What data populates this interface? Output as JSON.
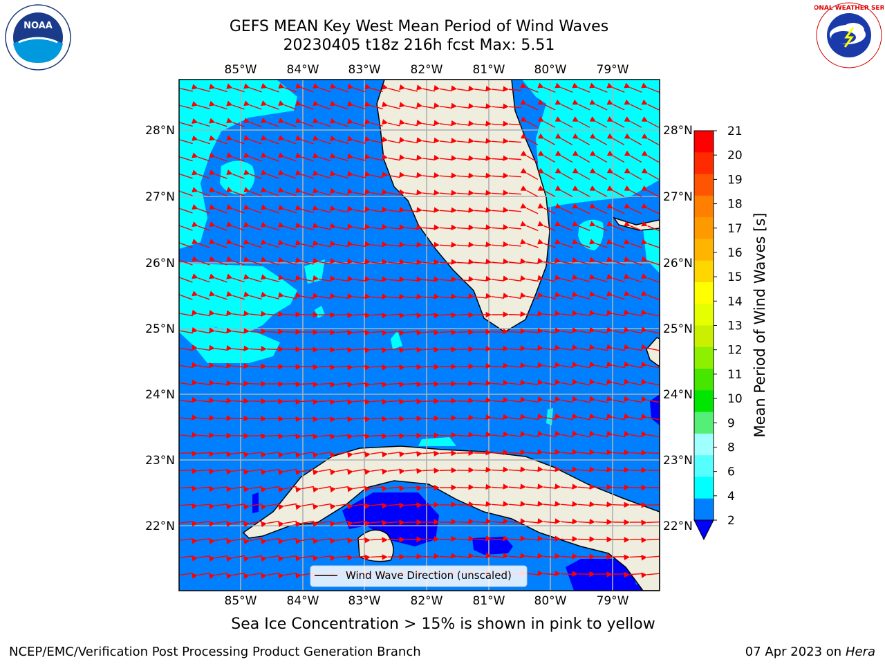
{
  "title_line1": "GEFS MEAN Key West Mean Period of Wind Waves",
  "title_line2": "20230405 t18z 216h fcst   Max: 5.51",
  "lon_labels": [
    "85°W",
    "84°W",
    "83°W",
    "82°W",
    "81°W",
    "80°W",
    "79°W"
  ],
  "lat_labels": [
    "28°N",
    "27°N",
    "26°N",
    "25°N",
    "24°N",
    "23°N",
    "22°N"
  ],
  "legend_text": "Wind Wave Direction (unscaled)",
  "caption": "Sea Ice Concentration > 15% is shown in pink to yellow",
  "footer_left": "NCEP/EMC/Verification Post Processing Product Generation Branch",
  "footer_right_date": "07 Apr 2023 on ",
  "footer_right_host": "Hera",
  "colorbar": {
    "label": "Mean Period of Wind Waves [s]",
    "ticks": [
      "21",
      "20",
      "19",
      "18",
      "17",
      "16",
      "15",
      "14",
      "13",
      "12",
      "11",
      "10",
      "9",
      "8",
      "6",
      "4",
      "2"
    ],
    "colors": [
      "#ff0000",
      "#ff2a00",
      "#ff5500",
      "#ff7f00",
      "#ff9900",
      "#ffb400",
      "#ffd600",
      "#ffff00",
      "#e6ff00",
      "#c8f000",
      "#8cf000",
      "#46e600",
      "#00e600",
      "#55ee77",
      "#a0ffff",
      "#55ffff",
      "#00ffff",
      "#0080ff"
    ],
    "under_color": "#0000ff"
  },
  "logos": {
    "noaa": "NOAA",
    "nws": "NATIONAL WEATHER SERVICE"
  },
  "colors": {
    "ocean_deep": "#0080ff",
    "ocean_light": "#00ffff",
    "ocean_dark": "#0000ff",
    "land": "#efedde",
    "arrow": "#ff0000",
    "grid": "#b0b0b0"
  }
}
